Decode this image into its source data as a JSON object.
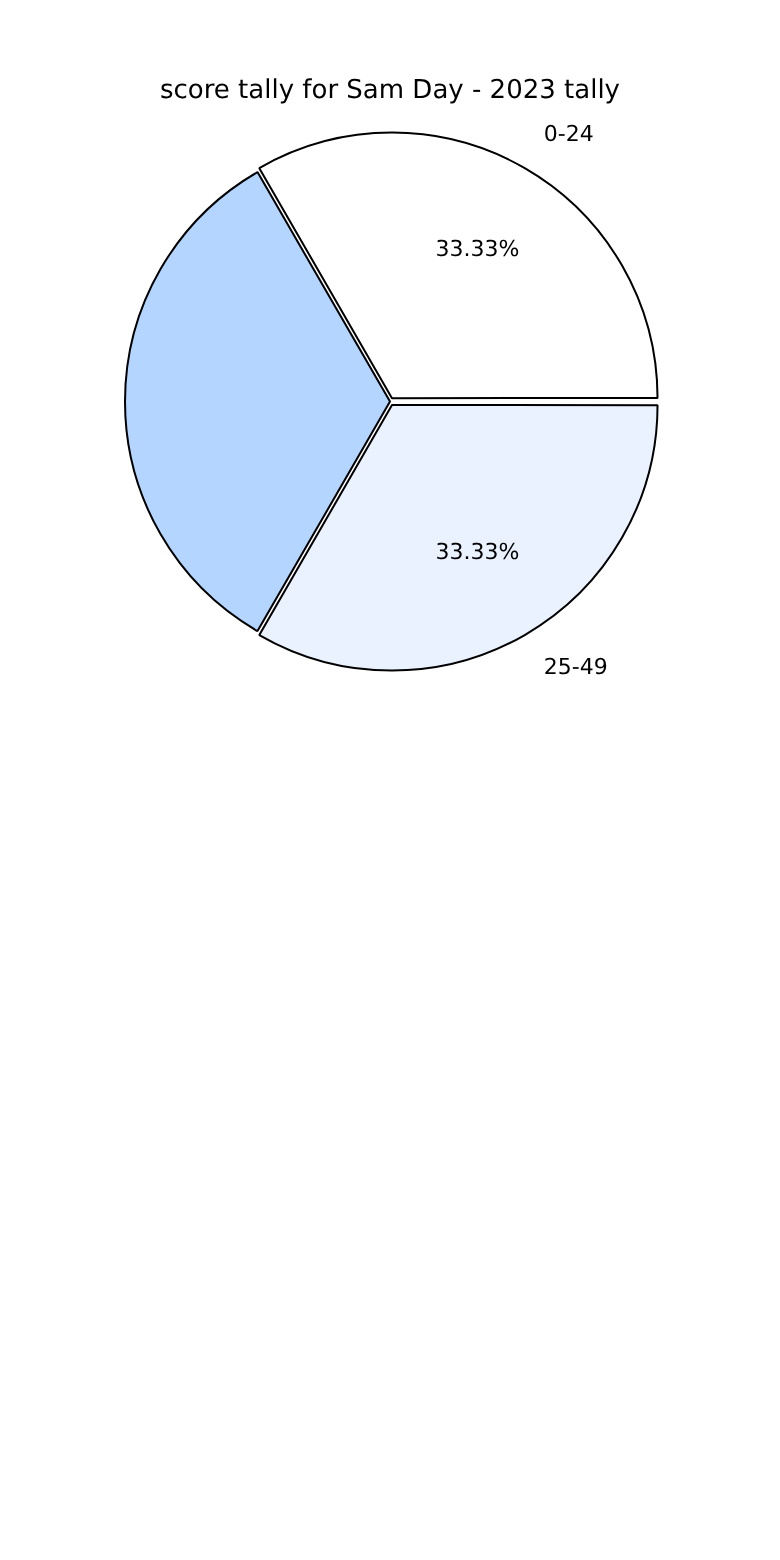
{
  "chart_data": {
    "type": "pie",
    "title": "score tally for Sam Day - 2023 tally",
    "categories": [
      "0-24",
      "25-49",
      null
    ],
    "values": [
      33.33,
      33.33,
      33.33
    ],
    "colors": [
      "#ffffff",
      "#eaf1ff",
      "#b3d5ff"
    ],
    "value_labels": [
      "33.33%",
      "33.33%",
      null
    ],
    "legend": false
  }
}
